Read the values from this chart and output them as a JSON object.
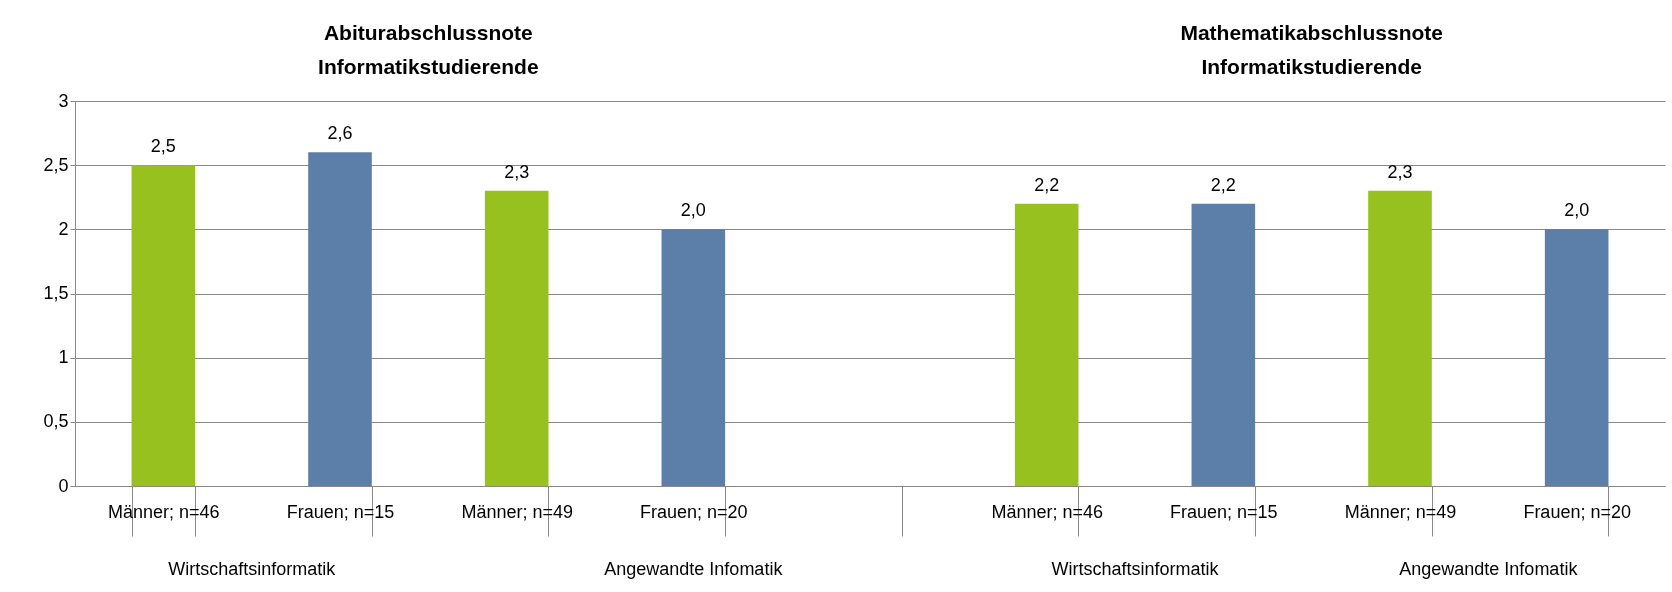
{
  "chart_data": {
    "type": "bar",
    "categories": [
      "Männer; n=46",
      "Frauen; n=15",
      "Männer; n=49",
      "Frauen; n=20",
      null,
      "Männer; n=46",
      "Frauen; n=15",
      "Männer; n=49",
      "Frauen; n=20"
    ],
    "values": [
      2.5,
      2.6,
      2.3,
      2.0,
      null,
      2.2,
      2.2,
      2.3,
      2.0
    ],
    "colors": [
      "#96c11f",
      "#5b7fa9",
      "#96c11f",
      "#5b7fa9",
      "#96c11f",
      "#96c11f",
      "#5b7fa9",
      "#96c11f",
      "#5b7fa9"
    ],
    "value_labels": [
      "2,5",
      "2,6",
      "2,3",
      "2,0",
      null,
      "2,2",
      "2,2",
      "2,3",
      "2,0"
    ],
    "ylim": [
      0,
      3
    ],
    "yticks": [
      0,
      {
        "value": 0.5,
        "label": "0,5"
      },
      1,
      {
        "value": 1.5,
        "label": "1,5"
      },
      2,
      {
        "value": 2.5,
        "label": "2,5"
      },
      3
    ],
    "grid": "y",
    "annotations": [
      "Abiturabschlussnote\nInformatikstudierende",
      "Mathematikabschlussnote\nInformatikstudierende",
      "Wirtschaftsinformatik",
      "Angewandte Infomatik",
      "Wirtschaftsinformatik",
      "Angewandte Infomatik"
    ]
  }
}
